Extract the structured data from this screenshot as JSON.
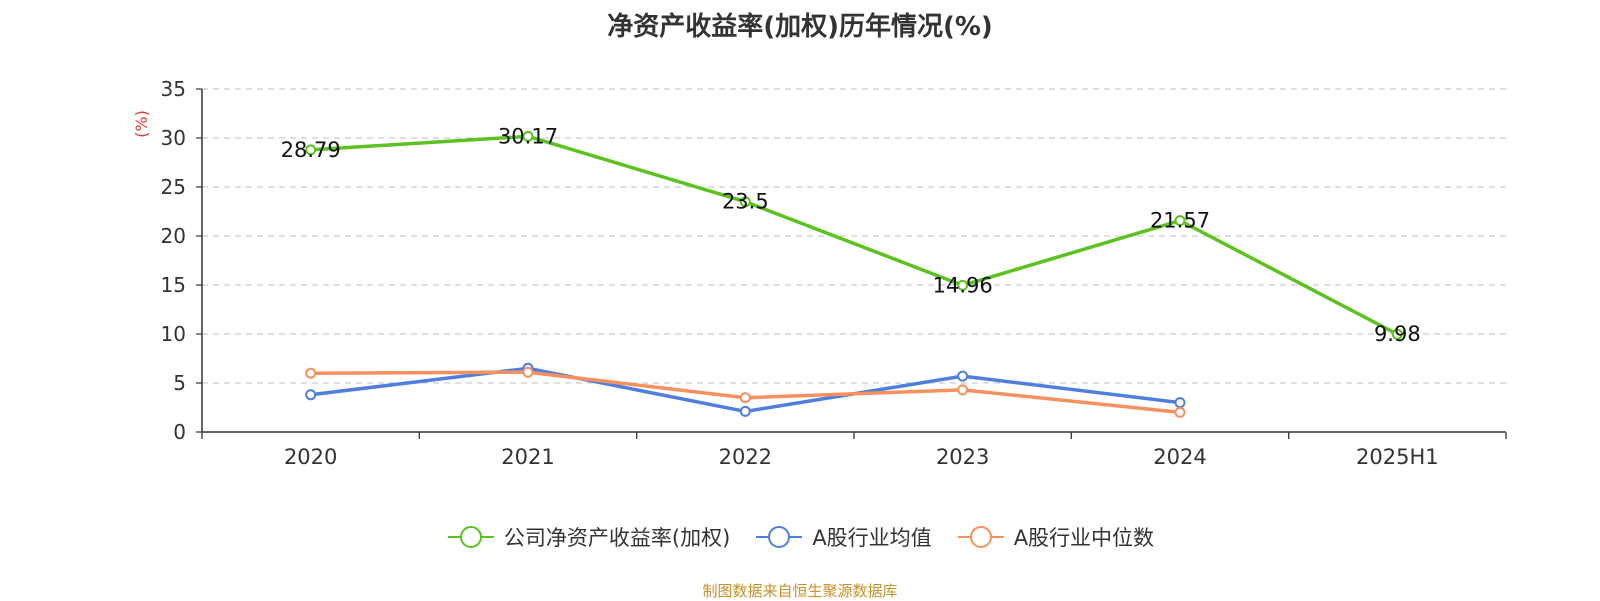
{
  "title": "净资产收益率(加权)历年情况(%)",
  "source": "制图数据来自恒生聚源数据库",
  "chart_data": {
    "type": "line",
    "categories": [
      "2020",
      "2021",
      "2022",
      "2023",
      "2024",
      "2025H1"
    ],
    "ylabel": "(%)",
    "ylim": [
      0,
      35
    ],
    "yticks": [
      0,
      5,
      10,
      15,
      20,
      25,
      30,
      35
    ],
    "grid": true,
    "legend_position": "bottom",
    "series": [
      {
        "name": "公司净资产收益率(加权)",
        "color": "#5cc21f",
        "values": [
          28.79,
          30.17,
          23.5,
          14.96,
          21.57,
          9.98
        ],
        "labels": [
          "28.79",
          "30.17",
          "23.5",
          "14.96",
          "21.57",
          "9.98"
        ]
      },
      {
        "name": "A股行业均值",
        "color": "#4f7fdc",
        "values": [
          3.8,
          6.5,
          2.1,
          5.7,
          3.0,
          null
        ]
      },
      {
        "name": "A股行业中位数",
        "color": "#f7905f",
        "values": [
          6.0,
          6.1,
          3.5,
          4.3,
          2.0,
          null
        ]
      }
    ]
  }
}
